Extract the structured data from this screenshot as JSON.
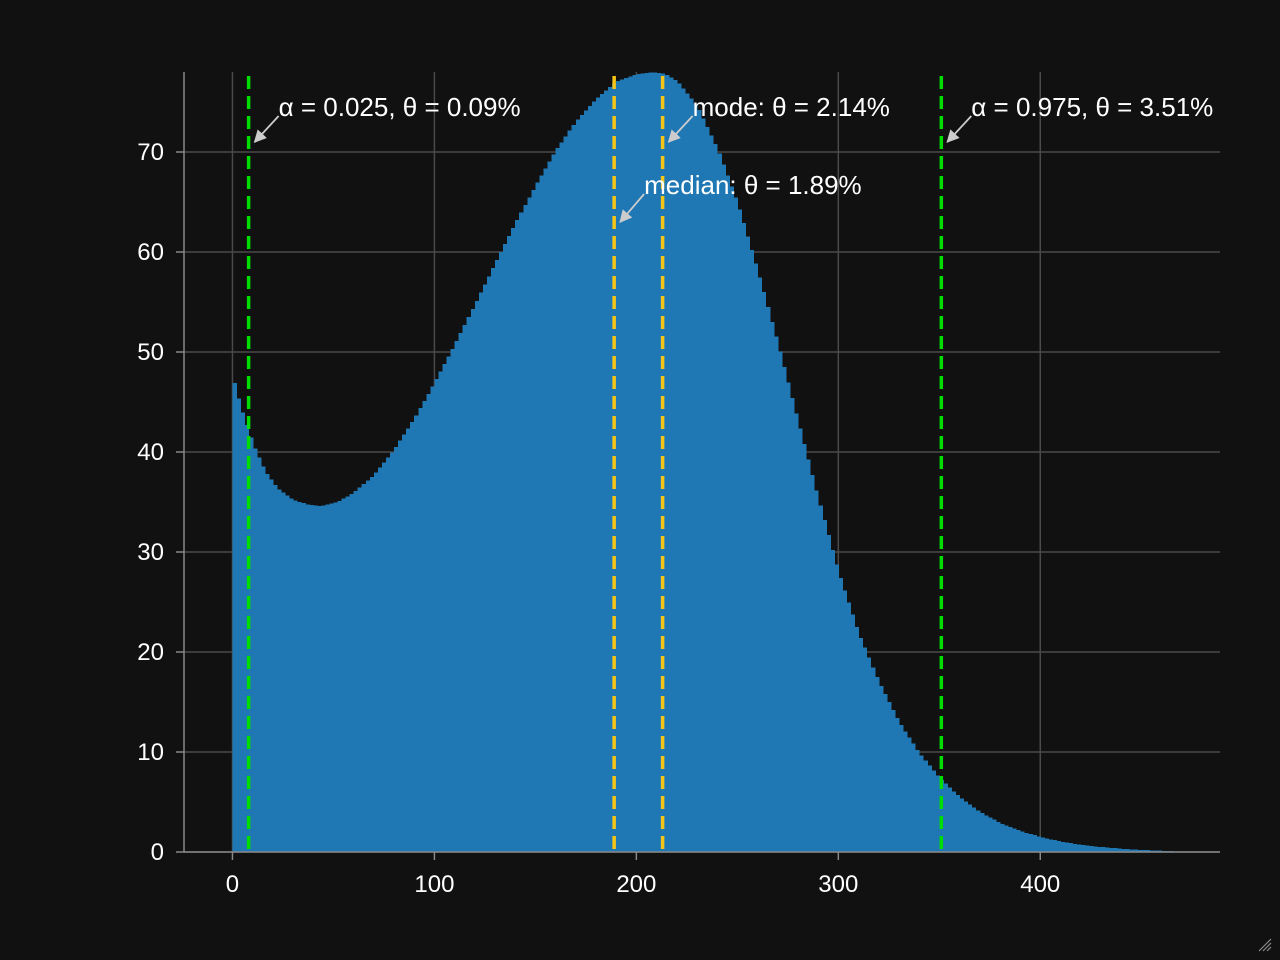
{
  "chart_data": {
    "type": "bar",
    "title": "",
    "xlabel": "",
    "ylabel": "",
    "xlim": [
      -24,
      489
    ],
    "ylim": [
      0,
      78
    ],
    "xticks": [
      0,
      100,
      200,
      300,
      400
    ],
    "yticks": [
      0,
      10,
      20,
      30,
      40,
      50,
      60,
      70
    ],
    "grid": true,
    "bin_width": 2,
    "bar_color": "#1f77b4",
    "curve_points": [
      [
        0,
        47.7
      ],
      [
        4,
        44.6
      ],
      [
        10,
        40.8
      ],
      [
        16,
        38.1
      ],
      [
        22,
        36.4
      ],
      [
        30,
        35.2
      ],
      [
        38,
        34.7
      ],
      [
        44,
        34.6
      ],
      [
        52,
        35.0
      ],
      [
        60,
        35.9
      ],
      [
        70,
        37.7
      ],
      [
        80,
        40.2
      ],
      [
        90,
        43.3
      ],
      [
        100,
        46.9
      ],
      [
        110,
        50.7
      ],
      [
        120,
        54.7
      ],
      [
        130,
        58.8
      ],
      [
        140,
        62.8
      ],
      [
        150,
        66.6
      ],
      [
        160,
        70.1
      ],
      [
        170,
        73.0
      ],
      [
        180,
        75.3
      ],
      [
        190,
        77.0
      ],
      [
        200,
        77.8
      ],
      [
        208,
        78.0
      ],
      [
        214,
        77.8
      ],
      [
        220,
        77.1
      ],
      [
        230,
        74.6
      ],
      [
        240,
        70.4
      ],
      [
        250,
        64.9
      ],
      [
        260,
        58.2
      ],
      [
        270,
        50.8
      ],
      [
        280,
        43.1
      ],
      [
        290,
        35.4
      ],
      [
        300,
        28.0
      ],
      [
        310,
        21.9
      ],
      [
        320,
        17.0
      ],
      [
        330,
        13.0
      ],
      [
        340,
        9.9
      ],
      [
        350,
        7.4
      ],
      [
        360,
        5.5
      ],
      [
        370,
        4.0
      ],
      [
        380,
        2.9
      ],
      [
        390,
        2.1
      ],
      [
        400,
        1.5
      ],
      [
        410,
        1.05
      ],
      [
        420,
        0.72
      ],
      [
        430,
        0.5
      ],
      [
        440,
        0.33
      ],
      [
        450,
        0.21
      ],
      [
        460,
        0.12
      ],
      [
        470,
        0.05
      ],
      [
        472,
        0.0
      ]
    ],
    "markers": [
      {
        "x": 8,
        "color": "#00dd00",
        "label": "α = 0.025, θ = 0.09%",
        "anchor_y": 71,
        "label_y": 74
      },
      {
        "x": 189,
        "color": "#f5c518",
        "label": "median: θ = 1.89%",
        "anchor_y": 63,
        "label_y": 66.2
      },
      {
        "x": 213,
        "color": "#f5c518",
        "label": "mode: θ = 2.14%",
        "anchor_y": 71,
        "label_y": 74
      },
      {
        "x": 351,
        "color": "#00dd00",
        "label": "α = 0.975, θ = 3.51%",
        "anchor_y": 71,
        "label_y": 74
      }
    ]
  },
  "colors": {
    "background": "#111111",
    "grid": "#4a4a4a",
    "axis": "#888888",
    "text": "#ffffff",
    "arrow": "#cccccc"
  },
  "icons": {
    "resize_grip": "resize-grip-icon"
  }
}
